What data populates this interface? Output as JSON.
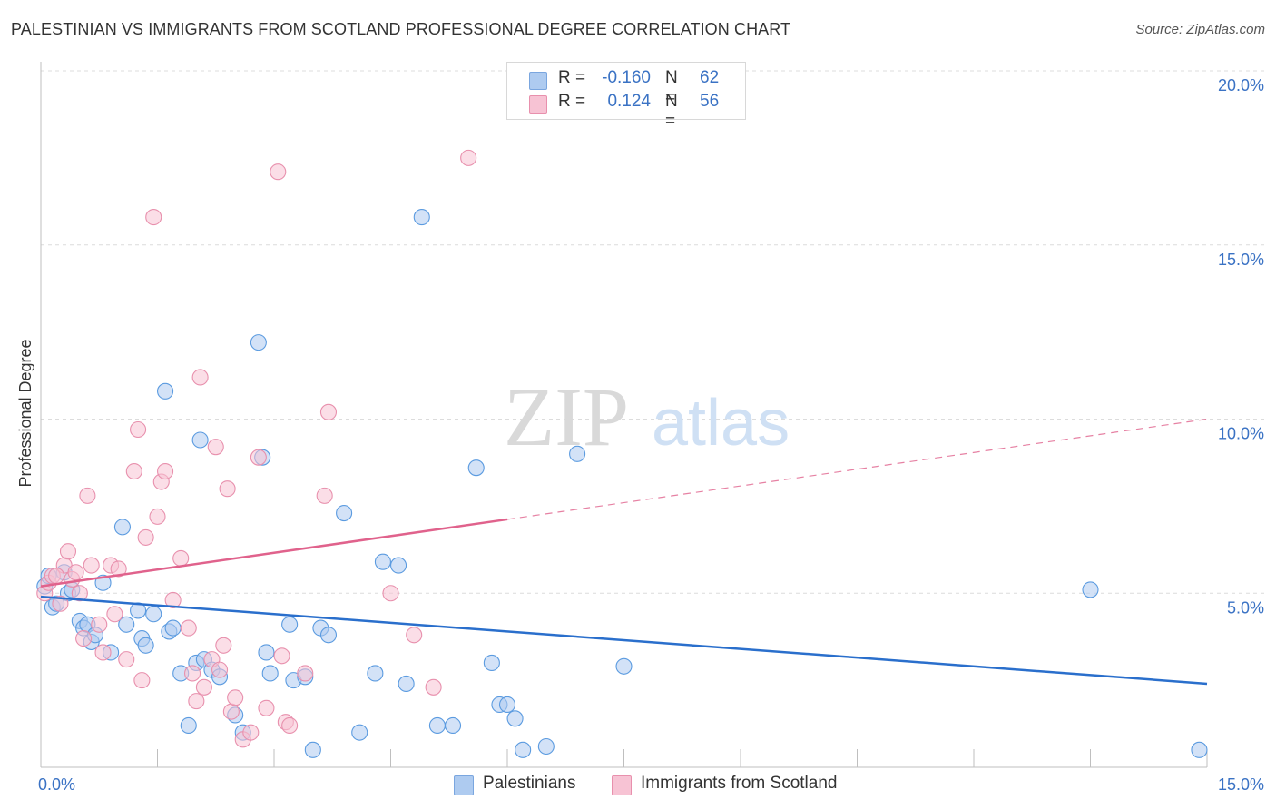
{
  "header": {
    "title": "PALESTINIAN VS IMMIGRANTS FROM SCOTLAND PROFESSIONAL DEGREE CORRELATION CHART",
    "source": "Source: ZipAtlas.com"
  },
  "watermark": {
    "zip": "ZIP",
    "atlas": "atlas"
  },
  "legend": {
    "rows": [
      {
        "r_label": "R =",
        "r_value": "-0.160",
        "n_label": "N =",
        "n_value": "62",
        "color": "#aecbf0",
        "border": "#7aa6df"
      },
      {
        "r_label": "R =",
        "r_value": "0.124",
        "n_label": "N =",
        "n_value": "56",
        "color": "#f7c3d4",
        "border": "#e890ad"
      }
    ]
  },
  "bottom_legend": {
    "items": [
      {
        "label": "Palestinians",
        "color": "#aecbf0",
        "border": "#7aa6df"
      },
      {
        "label": "Immigrants from Scotland",
        "color": "#f7c3d4",
        "border": "#e890ad"
      }
    ]
  },
  "chart_data": {
    "type": "scatter",
    "title": "PALESTINIAN VS IMMIGRANTS FROM SCOTLAND PROFESSIONAL DEGREE CORRELATION CHART",
    "ylabel": "Professional Degree",
    "xlabel": "",
    "xlim": [
      0,
      15
    ],
    "ylim": [
      0,
      20
    ],
    "x_tick_labels": [
      {
        "value": 0,
        "label": "0.0%"
      },
      {
        "value": 15,
        "label": "15.0%"
      }
    ],
    "y_tick_labels": [
      {
        "value": 5,
        "label": "5.0%"
      },
      {
        "value": 10,
        "label": "10.0%"
      },
      {
        "value": 15,
        "label": "15.0%"
      },
      {
        "value": 20,
        "label": "20.0%"
      }
    ],
    "grid": true,
    "series": [
      {
        "name": "Palestinians",
        "color": "#5b9be0",
        "fill": "#aecbf0",
        "trend": {
          "x": [
            0,
            15
          ],
          "y": [
            4.9,
            2.4
          ],
          "dashed_from": null,
          "line_color": "#2a6fcc"
        },
        "points": [
          [
            0.05,
            5.2
          ],
          [
            0.1,
            5.5
          ],
          [
            0.15,
            4.6
          ],
          [
            0.3,
            5.6
          ],
          [
            0.35,
            5.0
          ],
          [
            0.4,
            5.1
          ],
          [
            0.5,
            4.2
          ],
          [
            0.55,
            4.0
          ],
          [
            0.6,
            4.1
          ],
          [
            0.65,
            3.6
          ],
          [
            0.7,
            3.8
          ],
          [
            0.8,
            5.3
          ],
          [
            0.9,
            3.3
          ],
          [
            1.05,
            6.9
          ],
          [
            1.1,
            4.1
          ],
          [
            1.25,
            4.5
          ],
          [
            1.3,
            3.7
          ],
          [
            1.35,
            3.5
          ],
          [
            1.45,
            4.4
          ],
          [
            1.6,
            10.8
          ],
          [
            1.65,
            3.9
          ],
          [
            1.7,
            4.0
          ],
          [
            1.8,
            2.7
          ],
          [
            1.9,
            1.2
          ],
          [
            2.0,
            3.0
          ],
          [
            2.05,
            9.4
          ],
          [
            2.1,
            3.1
          ],
          [
            2.2,
            2.8
          ],
          [
            2.3,
            2.6
          ],
          [
            2.5,
            1.5
          ],
          [
            2.6,
            1.0
          ],
          [
            2.8,
            12.2
          ],
          [
            2.85,
            8.9
          ],
          [
            2.9,
            3.3
          ],
          [
            2.95,
            2.7
          ],
          [
            3.2,
            4.1
          ],
          [
            3.25,
            2.5
          ],
          [
            3.4,
            2.6
          ],
          [
            3.5,
            0.5
          ],
          [
            3.6,
            4.0
          ],
          [
            3.7,
            3.8
          ],
          [
            3.9,
            7.3
          ],
          [
            4.1,
            1.0
          ],
          [
            4.3,
            2.7
          ],
          [
            4.4,
            5.9
          ],
          [
            4.6,
            5.8
          ],
          [
            4.7,
            2.4
          ],
          [
            4.9,
            15.8
          ],
          [
            5.1,
            1.2
          ],
          [
            5.3,
            1.2
          ],
          [
            5.6,
            8.6
          ],
          [
            5.8,
            3.0
          ],
          [
            5.9,
            1.8
          ],
          [
            6.0,
            1.8
          ],
          [
            6.1,
            1.4
          ],
          [
            6.2,
            0.5
          ],
          [
            6.5,
            0.6
          ],
          [
            6.9,
            9.0
          ],
          [
            7.5,
            2.9
          ],
          [
            13.5,
            5.1
          ],
          [
            14.9,
            0.5
          ],
          [
            0.2,
            4.7
          ]
        ]
      },
      {
        "name": "Immigrants from Scotland",
        "color": "#e890ad",
        "fill": "#f7c3d4",
        "trend": {
          "x": [
            0,
            15
          ],
          "y": [
            5.2,
            10.0
          ],
          "dashed_from": 6.0,
          "line_color": "#e0628c"
        },
        "points": [
          [
            0.05,
            5.0
          ],
          [
            0.1,
            5.3
          ],
          [
            0.15,
            5.5
          ],
          [
            0.25,
            4.7
          ],
          [
            0.3,
            5.8
          ],
          [
            0.35,
            6.2
          ],
          [
            0.4,
            5.4
          ],
          [
            0.45,
            5.6
          ],
          [
            0.55,
            3.7
          ],
          [
            0.6,
            7.8
          ],
          [
            0.65,
            5.8
          ],
          [
            0.75,
            4.1
          ],
          [
            0.8,
            3.3
          ],
          [
            0.9,
            5.8
          ],
          [
            0.95,
            4.4
          ],
          [
            1.0,
            5.7
          ],
          [
            1.1,
            3.1
          ],
          [
            1.2,
            8.5
          ],
          [
            1.25,
            9.7
          ],
          [
            1.3,
            2.5
          ],
          [
            1.35,
            6.6
          ],
          [
            1.45,
            15.8
          ],
          [
            1.5,
            7.2
          ],
          [
            1.55,
            8.2
          ],
          [
            1.6,
            8.5
          ],
          [
            1.7,
            4.8
          ],
          [
            1.8,
            6.0
          ],
          [
            1.9,
            4.0
          ],
          [
            1.95,
            2.7
          ],
          [
            2.0,
            1.9
          ],
          [
            2.05,
            11.2
          ],
          [
            2.1,
            2.3
          ],
          [
            2.2,
            3.1
          ],
          [
            2.25,
            9.2
          ],
          [
            2.3,
            2.8
          ],
          [
            2.35,
            3.5
          ],
          [
            2.4,
            8.0
          ],
          [
            2.45,
            1.6
          ],
          [
            2.5,
            2.0
          ],
          [
            2.6,
            0.8
          ],
          [
            2.7,
            1.0
          ],
          [
            2.8,
            8.9
          ],
          [
            2.9,
            1.7
          ],
          [
            3.05,
            17.1
          ],
          [
            3.1,
            3.2
          ],
          [
            3.15,
            1.3
          ],
          [
            3.2,
            1.2
          ],
          [
            3.4,
            2.7
          ],
          [
            3.65,
            7.8
          ],
          [
            3.7,
            10.2
          ],
          [
            4.5,
            5.0
          ],
          [
            4.8,
            3.8
          ],
          [
            5.05,
            2.3
          ],
          [
            5.5,
            17.5
          ],
          [
            0.2,
            5.5
          ],
          [
            0.5,
            5.0
          ]
        ]
      }
    ]
  }
}
